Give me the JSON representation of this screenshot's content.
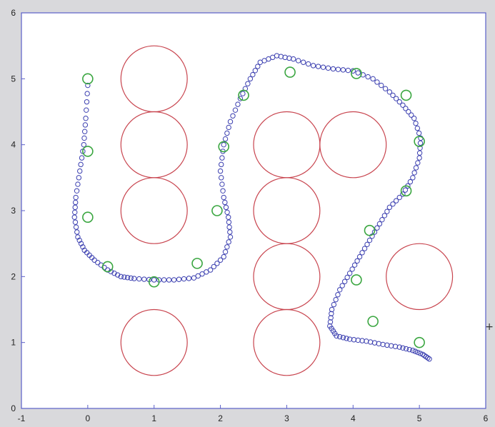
{
  "chart_data": {
    "type": "scatter",
    "xlim": [
      -1,
      6
    ],
    "ylim": [
      0,
      6
    ],
    "xticks": [
      "-1",
      "0",
      "1",
      "2",
      "3",
      "4",
      "5",
      "6"
    ],
    "yticks": [
      "0",
      "1",
      "2",
      "3",
      "4",
      "5",
      "6"
    ],
    "grid": false,
    "colors": {
      "obstacle": "#c8444e",
      "path": "#3b3fb0",
      "waypoint": "#3aa640",
      "axes": "#5a5fc8",
      "plot_bg": "#ffffff"
    },
    "obstacles": {
      "radius": 0.5,
      "centers": [
        [
          1,
          5
        ],
        [
          1,
          4
        ],
        [
          1,
          3
        ],
        [
          1,
          1
        ],
        [
          3,
          4
        ],
        [
          3,
          3
        ],
        [
          3,
          2
        ],
        [
          3,
          1
        ],
        [
          4,
          4
        ],
        [
          5,
          2
        ]
      ]
    },
    "waypoints": [
      [
        0,
        5
      ],
      [
        0,
        3.9
      ],
      [
        0,
        2.9
      ],
      [
        0.3,
        2.15
      ],
      [
        1,
        1.92
      ],
      [
        1.65,
        2.2
      ],
      [
        1.95,
        3.0
      ],
      [
        2.05,
        3.97
      ],
      [
        2.35,
        4.75
      ],
      [
        3.05,
        5.1
      ],
      [
        4.05,
        5.08
      ],
      [
        4.8,
        4.75
      ],
      [
        5.0,
        4.05
      ],
      [
        4.8,
        3.3
      ],
      [
        4.25,
        2.7
      ],
      [
        4.05,
        1.95
      ],
      [
        4.3,
        1.32
      ],
      [
        5.0,
        1.0
      ]
    ],
    "path": [
      [
        0.0,
        4.9
      ],
      [
        -0.03,
        4.4
      ],
      [
        -0.06,
        4.0
      ],
      [
        -0.12,
        3.6
      ],
      [
        -0.18,
        3.2
      ],
      [
        -0.2,
        2.9
      ],
      [
        -0.15,
        2.6
      ],
      [
        -0.05,
        2.4
      ],
      [
        0.1,
        2.25
      ],
      [
        0.3,
        2.1
      ],
      [
        0.5,
        2.0
      ],
      [
        0.7,
        1.97
      ],
      [
        1.0,
        1.95
      ],
      [
        1.3,
        1.95
      ],
      [
        1.6,
        1.98
      ],
      [
        1.85,
        2.1
      ],
      [
        2.05,
        2.3
      ],
      [
        2.15,
        2.6
      ],
      [
        2.12,
        2.9
      ],
      [
        2.05,
        3.2
      ],
      [
        2.0,
        3.6
      ],
      [
        2.05,
        4.0
      ],
      [
        2.15,
        4.35
      ],
      [
        2.3,
        4.7
      ],
      [
        2.45,
        5.0
      ],
      [
        2.6,
        5.25
      ],
      [
        2.85,
        5.35
      ],
      [
        3.1,
        5.3
      ],
      [
        3.4,
        5.2
      ],
      [
        3.7,
        5.15
      ],
      [
        4.0,
        5.12
      ],
      [
        4.3,
        5.0
      ],
      [
        4.55,
        4.8
      ],
      [
        4.75,
        4.6
      ],
      [
        4.92,
        4.4
      ],
      [
        5.02,
        4.1
      ],
      [
        5.0,
        3.8
      ],
      [
        4.9,
        3.5
      ],
      [
        4.75,
        3.25
      ],
      [
        4.55,
        3.05
      ],
      [
        4.4,
        2.8
      ],
      [
        4.25,
        2.55
      ],
      [
        4.1,
        2.3
      ],
      [
        3.95,
        2.05
      ],
      [
        3.8,
        1.8
      ],
      [
        3.68,
        1.5
      ],
      [
        3.65,
        1.25
      ],
      [
        3.75,
        1.1
      ],
      [
        3.95,
        1.05
      ],
      [
        4.2,
        1.02
      ],
      [
        4.45,
        0.97
      ],
      [
        4.7,
        0.93
      ],
      [
        4.9,
        0.88
      ],
      [
        5.05,
        0.82
      ],
      [
        5.15,
        0.75
      ]
    ]
  }
}
